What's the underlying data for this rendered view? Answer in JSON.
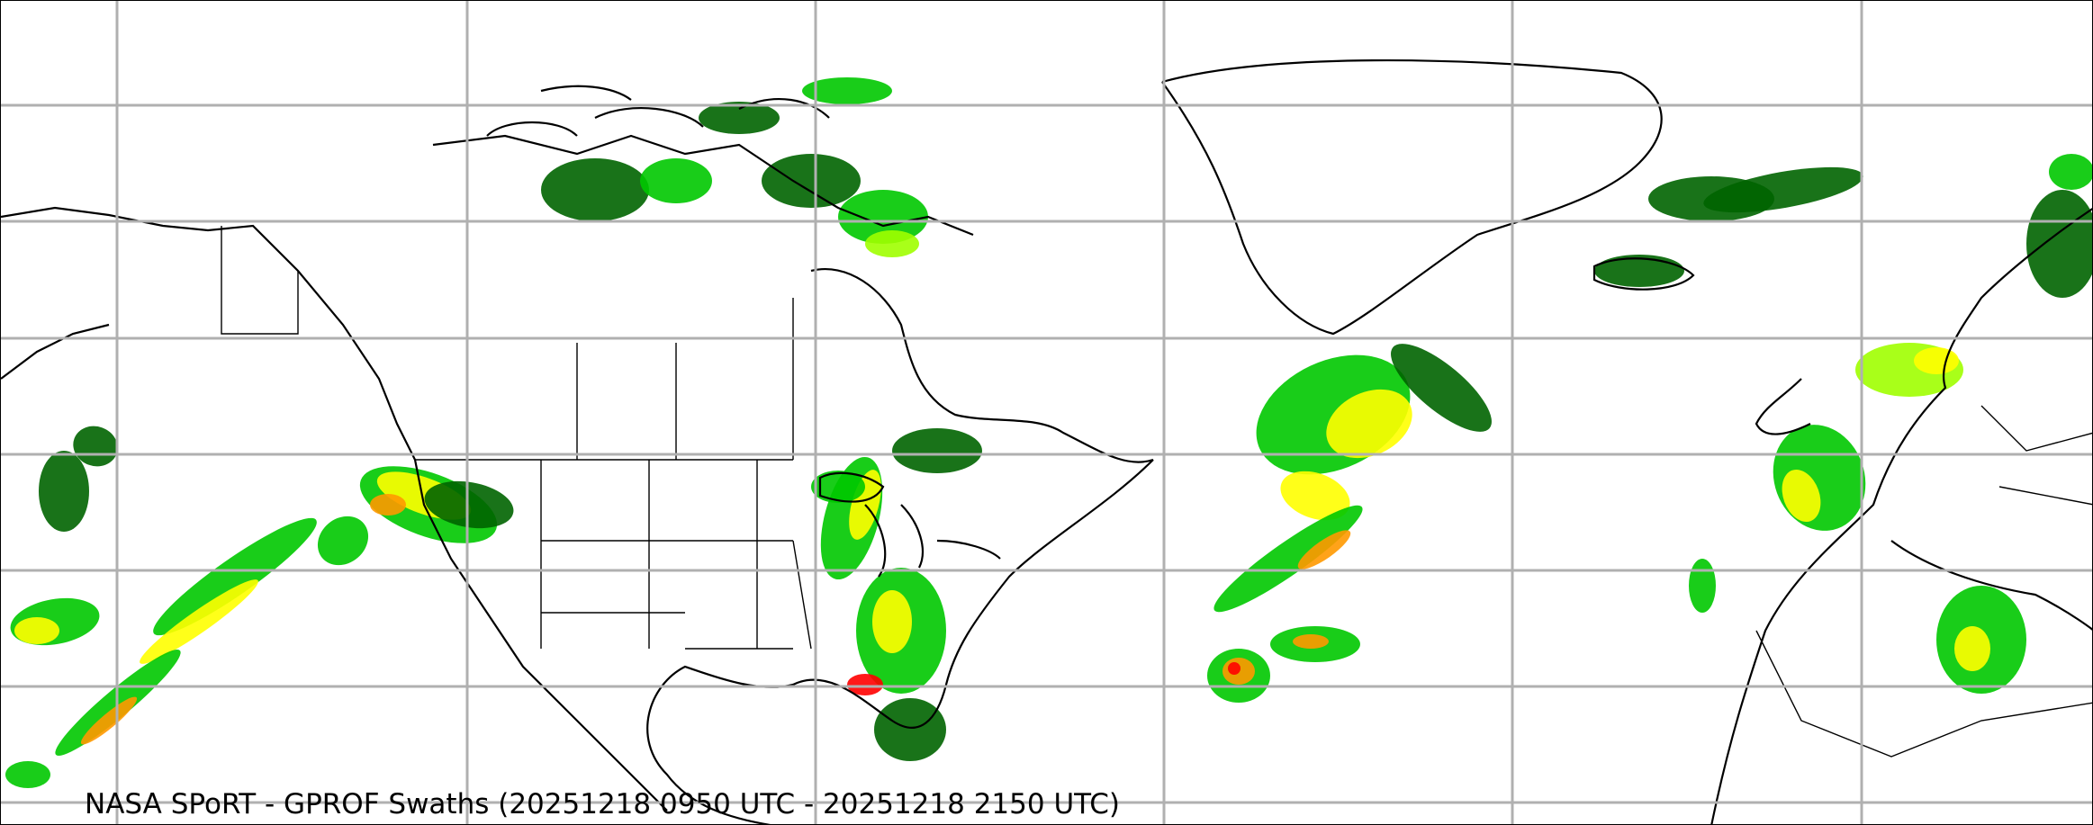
{
  "title": "NASA SPoRT - GPROF Swaths (20251218 0950 UTC - 20251218 2150 UTC)",
  "map": {
    "projection": "equirectangular",
    "region": "North America, North Atlantic, Europe",
    "gridlines": true,
    "colors": {
      "light_precip": "#006400",
      "moderate_precip": "#00c800",
      "heavier_precip": "#a0ff00",
      "heavy_precip": "#ffff00",
      "very_heavy_precip": "#ff9900",
      "extreme_precip": "#ff0000",
      "coastline": "#000000",
      "grid": "#b0b0b0"
    }
  }
}
